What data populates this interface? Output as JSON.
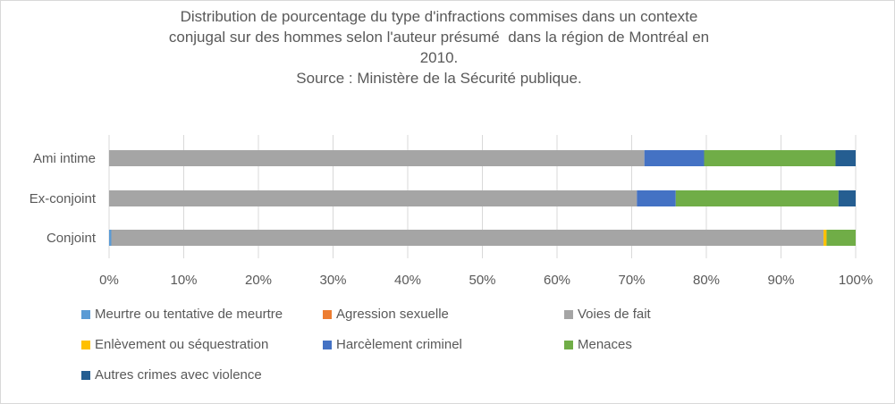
{
  "chart_data": {
    "type": "bar",
    "orientation": "horizontal",
    "stacked": "percent",
    "title_lines": [
      "Distribution de pourcentage du type d'infractions commises dans un contexte",
      "conjugal sur des hommes selon l'auteur présumé  dans la région de Montréal en",
      "2010.",
      "Source : Ministère de la Sécurité publique."
    ],
    "categories": [
      "Conjoint",
      "Ex-conjoint",
      "Ami intime"
    ],
    "series": [
      {
        "name": "Meurtre ou tentative de meurtre",
        "color": "#5b9bd5",
        "values": [
          0.3,
          0,
          0
        ]
      },
      {
        "name": "Agression sexuelle",
        "color": "#ed7d31",
        "values": [
          0,
          0,
          0
        ]
      },
      {
        "name": "Voies de fait",
        "color": "#a5a5a5",
        "values": [
          95.4,
          70.7,
          71.7
        ]
      },
      {
        "name": "Enlèvement ou séquestration",
        "color": "#ffc000",
        "values": [
          0.4,
          0,
          0
        ]
      },
      {
        "name": "Harcèlement criminel",
        "color": "#4472c4",
        "values": [
          0,
          5.2,
          8.0
        ]
      },
      {
        "name": "Menaces",
        "color": "#70ad47",
        "values": [
          3.9,
          21.8,
          17.6
        ]
      },
      {
        "name": "Autres crimes avec violence",
        "color": "#255e91",
        "values": [
          0,
          2.3,
          2.7
        ]
      }
    ],
    "xlim": [
      0,
      100
    ],
    "x_ticks": [
      "0%",
      "10%",
      "20%",
      "30%",
      "40%",
      "50%",
      "60%",
      "70%",
      "80%",
      "90%",
      "100%"
    ],
    "grid": true,
    "legend_position": "bottom"
  }
}
